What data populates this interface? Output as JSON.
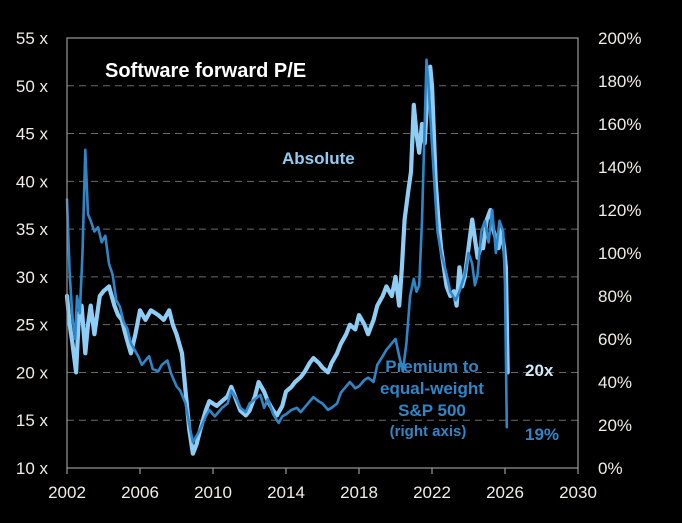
{
  "chart_data": {
    "type": "line",
    "title": "Software forward P/E",
    "xlabel": "",
    "ylabel_left": "",
    "ylabel_right": "",
    "x_ticks": [
      "2002",
      "2006",
      "2010",
      "2014",
      "2018",
      "2022",
      "2026",
      "2030"
    ],
    "x_range": [
      2002,
      2030
    ],
    "y_left_ticks": [
      "55 x",
      "50 x",
      "45 x",
      "40 x",
      "35 x",
      "30 x",
      "25 x",
      "20 x",
      "15 x",
      "10 x"
    ],
    "y_left_range": [
      10,
      55
    ],
    "y_right_ticks": [
      "200%",
      "180%",
      "160%",
      "140%",
      "120%",
      "100%",
      "80%",
      "60%",
      "40%",
      "20%",
      "0%"
    ],
    "y_right_range": [
      0,
      200
    ],
    "grid": true,
    "colors": {
      "absolute": "#8ecdf5",
      "premium": "#2f86c6",
      "axis": "#9a9a9a",
      "grid": "#6a6a6a"
    },
    "series": [
      {
        "name": "Absolute",
        "axis": "left",
        "x": [
          2002.0,
          2002.15,
          2002.3,
          2002.5,
          2002.65,
          2002.8,
          2003.0,
          2003.15,
          2003.3,
          2003.5,
          2003.65,
          2003.8,
          2004.0,
          2004.3,
          2004.6,
          2004.8,
          2005.0,
          2005.2,
          2005.5,
          2005.75,
          2006.0,
          2006.3,
          2006.6,
          2007.0,
          2007.3,
          2007.6,
          2007.8,
          2008.0,
          2008.3,
          2008.5,
          2008.7,
          2008.9,
          2009.1,
          2009.3,
          2009.6,
          2009.8,
          2010.2,
          2010.5,
          2010.8,
          2011.0,
          2011.3,
          2011.5,
          2011.8,
          2012.0,
          2012.3,
          2012.5,
          2012.8,
          2013.0,
          2013.3,
          2013.5,
          2013.8,
          2014.0,
          2014.3,
          2014.5,
          2014.8,
          2015.0,
          2015.3,
          2015.5,
          2015.8,
          2016.0,
          2016.3,
          2016.5,
          2016.8,
          2017.0,
          2017.3,
          2017.5,
          2017.8,
          2018.0,
          2018.3,
          2018.5,
          2018.8,
          2019.0,
          2019.3,
          2019.5,
          2019.8,
          2020.0,
          2020.2,
          2020.35,
          2020.5,
          2020.7,
          2020.85,
          2021.0,
          2021.15,
          2021.3,
          2021.45,
          2021.6,
          2021.75,
          2021.9,
          2022.0,
          2022.2,
          2022.35,
          2022.5,
          2022.65,
          2022.8,
          2023.0,
          2023.2,
          2023.35,
          2023.5,
          2023.65,
          2023.8,
          2024.0,
          2024.2,
          2024.35,
          2024.5,
          2024.65,
          2024.8,
          2025.0,
          2025.2,
          2025.35,
          2025.5,
          2025.65,
          2025.8,
          2025.95,
          2026.05,
          2026.15
        ],
        "values": [
          28,
          25,
          23,
          20,
          26,
          27,
          22,
          25,
          27,
          24,
          26,
          28,
          28.5,
          29,
          27,
          26,
          25.5,
          24,
          22,
          24,
          26.5,
          25.5,
          26.5,
          26,
          25.5,
          26.5,
          25,
          24,
          22,
          18,
          14,
          11.5,
          12.5,
          14,
          16,
          17,
          16.5,
          17,
          17.5,
          18.5,
          17,
          16,
          15.5,
          16,
          17.5,
          19,
          18,
          17,
          16,
          15.5,
          16.5,
          18,
          18.5,
          19,
          19.5,
          20,
          21,
          21.5,
          21,
          20.5,
          20,
          21,
          22,
          23,
          24,
          25,
          24.5,
          26,
          25,
          24,
          25.5,
          27,
          28,
          29,
          28,
          30,
          27,
          31,
          36,
          39,
          41,
          48,
          45,
          43,
          46,
          44,
          49,
          52,
          50,
          40,
          36,
          33,
          31,
          29,
          28,
          28.5,
          27,
          31,
          29,
          30,
          33,
          36,
          34,
          32,
          33,
          33,
          36,
          37,
          35,
          34,
          33,
          35,
          33,
          31,
          20
        ]
      },
      {
        "name": "Premium to equal-weight S&P 500 (right axis)",
        "axis": "right",
        "x": [
          2002.0,
          2002.15,
          2002.3,
          2002.45,
          2002.55,
          2002.7,
          2002.85,
          2003.0,
          2003.15,
          2003.3,
          2003.5,
          2003.7,
          2003.9,
          2004.1,
          2004.3,
          2004.5,
          2004.7,
          2004.9,
          2005.1,
          2005.3,
          2005.5,
          2005.7,
          2005.9,
          2006.1,
          2006.3,
          2006.5,
          2006.7,
          2007.0,
          2007.2,
          2007.5,
          2007.7,
          2008.0,
          2008.2,
          2008.5,
          2008.7,
          2008.9,
          2009.1,
          2009.3,
          2009.6,
          2009.8,
          2010.1,
          2010.5,
          2010.8,
          2011.0,
          2011.3,
          2011.5,
          2011.8,
          2012.0,
          2012.3,
          2012.6,
          2012.8,
          2013.0,
          2013.3,
          2013.6,
          2013.8,
          2014.0,
          2014.3,
          2014.6,
          2014.8,
          2015.0,
          2015.3,
          2015.5,
          2015.8,
          2016.0,
          2016.3,
          2016.5,
          2016.8,
          2017.0,
          2017.3,
          2017.5,
          2017.8,
          2018.0,
          2018.3,
          2018.5,
          2018.8,
          2019.0,
          2019.3,
          2019.5,
          2019.8,
          2020.0,
          2020.2,
          2020.4,
          2020.6,
          2020.8,
          2021.0,
          2021.15,
          2021.3,
          2021.45,
          2021.6,
          2021.7,
          2021.8,
          2022.0,
          2022.15,
          2022.3,
          2022.5,
          2022.8,
          2023.0,
          2023.3,
          2023.5,
          2023.8,
          2024.0,
          2024.2,
          2024.35,
          2024.5,
          2024.7,
          2024.9,
          2025.1,
          2025.3,
          2025.5,
          2025.7,
          2025.9,
          2026.0,
          2026.1
        ],
        "values": [
          125,
          90,
          70,
          60,
          80,
          72,
          100,
          148,
          118,
          115,
          110,
          112,
          105,
          108,
          95,
          90,
          78,
          75,
          68,
          65,
          58,
          55,
          52,
          48,
          50,
          52,
          46,
          45,
          48,
          50,
          44,
          38,
          36,
          30,
          20,
          12,
          15,
          18,
          24,
          27,
          24,
          28,
          30,
          36,
          32,
          28,
          26,
          30,
          32,
          34,
          28,
          32,
          25,
          21,
          24,
          25,
          27,
          28,
          26,
          28,
          31,
          33,
          31,
          30,
          27,
          28,
          30,
          35,
          38,
          40,
          37,
          38,
          41,
          42,
          40,
          48,
          52,
          55,
          58,
          60,
          52,
          45,
          58,
          80,
          88,
          82,
          85,
          115,
          160,
          190,
          180,
          150,
          130,
          110,
          100,
          90,
          82,
          78,
          82,
          90,
          100,
          95,
          85,
          90,
          110,
          115,
          105,
          120,
          100,
          115,
          110,
          85,
          19
        ]
      }
    ],
    "annotations": [
      {
        "text": "Absolute",
        "series": "Absolute"
      },
      {
        "text": "Premium to",
        "series": "Premium"
      },
      {
        "text": "equal-weight",
        "series": "Premium"
      },
      {
        "text": "S&P 500",
        "series": "Premium"
      },
      {
        "text": "(right axis)",
        "series": "Premium"
      },
      {
        "text": "20x",
        "series": "Absolute",
        "value": 20
      },
      {
        "text": "19%",
        "series": "Premium",
        "value": 19
      }
    ],
    "legend": "none"
  }
}
